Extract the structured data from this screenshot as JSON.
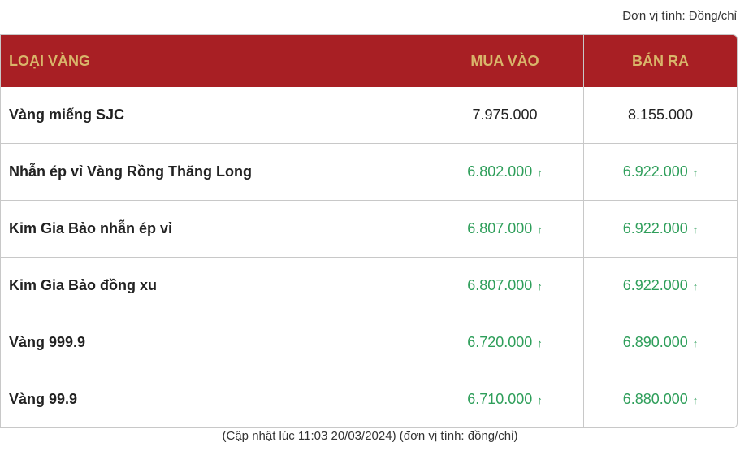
{
  "unit_label": "Đơn vị tính: Đồng/chỉ",
  "table": {
    "headers": [
      "LOẠI VÀNG",
      "MUA VÀO",
      "BÁN RA"
    ],
    "rows": [
      {
        "name": "Vàng miếng SJC",
        "buy": "7.975.000",
        "sell": "8.155.000",
        "buy_trend": "none",
        "sell_trend": "none"
      },
      {
        "name": "Nhẫn ép vỉ Vàng Rồng Thăng Long",
        "buy": "6.802.000",
        "sell": "6.922.000",
        "buy_trend": "up",
        "sell_trend": "up"
      },
      {
        "name": "Kim Gia Bảo nhẫn ép vỉ",
        "buy": "6.807.000",
        "sell": "6.922.000",
        "buy_trend": "up",
        "sell_trend": "up"
      },
      {
        "name": "Kim Gia Bảo đồng xu",
        "buy": "6.807.000",
        "sell": "6.922.000",
        "buy_trend": "up",
        "sell_trend": "up"
      },
      {
        "name": "Vàng 999.9",
        "buy": "6.720.000",
        "sell": "6.890.000",
        "buy_trend": "up",
        "sell_trend": "up"
      },
      {
        "name": "Vàng 99.9",
        "buy": "6.710.000",
        "sell": "6.880.000",
        "buy_trend": "up",
        "sell_trend": "up"
      }
    ]
  },
  "footer": "(Cập nhật lúc 11:03 20/03/2024) (đơn vị tính: đồng/chỉ)",
  "colors": {
    "header_bg": "#a81f24",
    "header_text": "#d9b56a",
    "up": "#2e9e5a"
  },
  "icons": {
    "up": "arrow-up-icon"
  }
}
